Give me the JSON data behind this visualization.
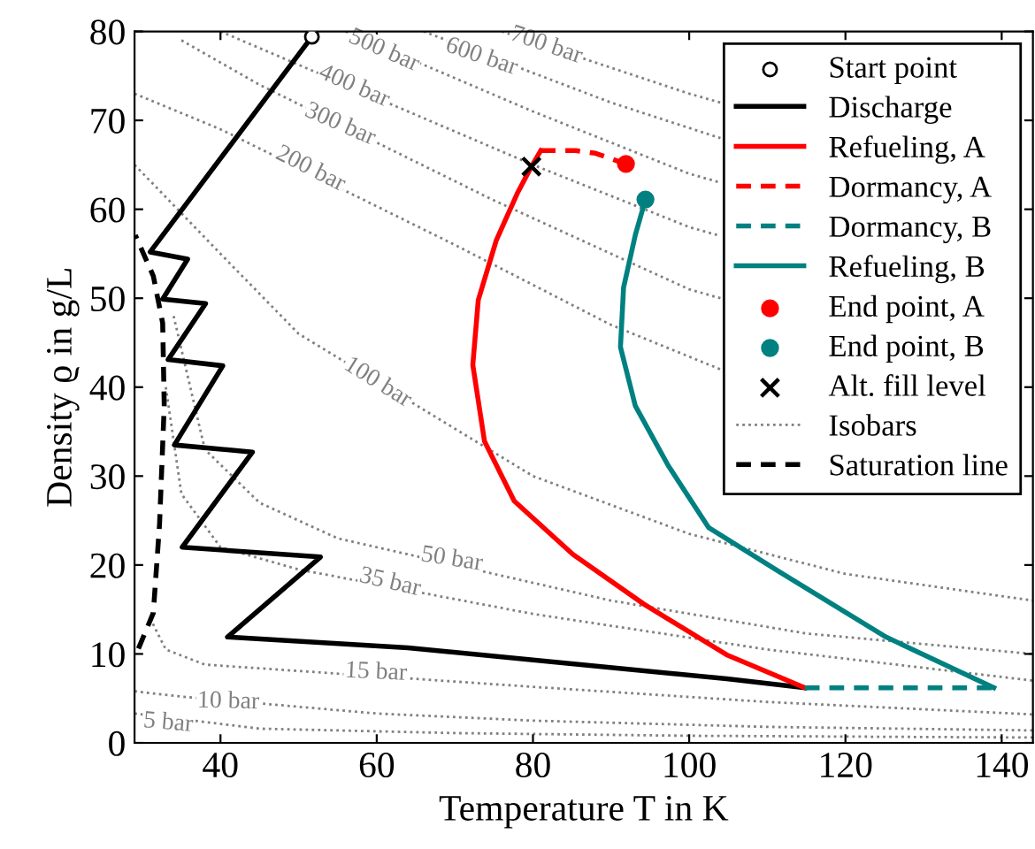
{
  "chart_data": {
    "type": "line",
    "xlabel": "Temperature T in K",
    "ylabel": "Density ϱ in g/L",
    "xlim": [
      29,
      144
    ],
    "ylim": [
      0,
      80
    ],
    "xticks": [
      40,
      60,
      80,
      100,
      120,
      140
    ],
    "yticks": [
      0,
      10,
      20,
      30,
      40,
      50,
      60,
      70,
      80
    ],
    "grid": false,
    "legend": "top right",
    "series": [
      {
        "name": "Start point",
        "type": "scatter",
        "marker": "circle",
        "color": "#ffffff",
        "x": [
          51.7
        ],
        "values": [
          79.4
        ]
      },
      {
        "name": "Discharge",
        "color": "#000000",
        "line_style": "solid",
        "x": [
          51.7,
          31.0,
          35.8,
          32.6,
          38.1,
          33.3,
          40.3,
          34.1,
          44.1,
          35.1,
          52.8,
          40.9,
          64,
          104.8,
          114.8
        ],
        "values": [
          79.4,
          55.2,
          54.4,
          49.9,
          49.4,
          43.1,
          42.4,
          33.5,
          32.7,
          22.0,
          20.9,
          11.9,
          10.7,
          7.2,
          6.2
        ]
      },
      {
        "name": "Refueling, A",
        "type": "line",
        "color": "#ff0000",
        "line_style": "solid",
        "x": [
          114.8,
          104.8,
          94.2,
          85.1,
          77.6,
          73.8,
          72.3,
          73.0,
          75.3,
          78.0,
          79.8,
          81.0
        ],
        "values": [
          6.2,
          9.9,
          15.6,
          21.2,
          27.2,
          33.9,
          42.5,
          49.8,
          56.5,
          61.8,
          64.8,
          66.6
        ]
      },
      {
        "name": "Dormancy, A",
        "type": "line",
        "color": "#ff0000",
        "line_style": "dashed",
        "x": [
          81.0,
          85.5,
          88.0,
          91.9
        ],
        "values": [
          66.6,
          66.6,
          66.3,
          65.1
        ]
      },
      {
        "name": "Dormancy, B",
        "type": "line",
        "color": "#008080",
        "line_style": "dashed",
        "x": [
          114.8,
          139
        ],
        "values": [
          6.2,
          6.2
        ]
      },
      {
        "name": "Refueling, B",
        "type": "line",
        "color": "#008080",
        "line_style": "solid",
        "x": [
          139,
          125.2,
          111.6,
          102.5,
          97.3,
          93.1,
          91.2,
          91.6,
          93.1,
          94.4
        ],
        "values": [
          6.2,
          11.9,
          19.2,
          24.2,
          31.2,
          37.9,
          44.5,
          51.2,
          57.1,
          61.1
        ]
      },
      {
        "name": "End point, A",
        "type": "scatter",
        "marker": "circle",
        "color": "#ff0000",
        "x": [
          91.9
        ],
        "values": [
          65.1
        ]
      },
      {
        "name": "End point, B",
        "type": "scatter",
        "marker": "circle",
        "color": "#008080",
        "x": [
          94.4
        ],
        "values": [
          61.1
        ]
      },
      {
        "name": "Alt. fill level",
        "type": "scatter",
        "marker": "cross",
        "color": "#000000",
        "x": [
          79.8
        ],
        "values": [
          64.8
        ]
      },
      {
        "name": "Isobars",
        "type": "line",
        "color": "#808080",
        "line_style": "dotted",
        "x": [
          29,
          45,
          70,
          100,
          144,
          null,
          29,
          35,
          60,
          80,
          110,
          144,
          null,
          31,
          33,
          38,
          80,
          110,
          144,
          null,
          33,
          35,
          40,
          50,
          80,
          110,
          144,
          null,
          34,
          38,
          45,
          55,
          90,
          115,
          144,
          null,
          29,
          40,
          50,
          80,
          100,
          120,
          144,
          null,
          29,
          40,
          70,
          90,
          104,
          null,
          35,
          45,
          75,
          100,
          104,
          null,
          40,
          80,
          100,
          104,
          null,
          56,
          80,
          100,
          104,
          null,
          66,
          90,
          104,
          null,
          76,
          100,
          104
        ],
        "values": [
          3.3,
          1.6,
          1.1,
          0.8,
          0.6,
          null,
          5.8,
          5.2,
          3.3,
          2.5,
          1.8,
          1.4,
          null,
          14,
          10.5,
          8.8,
          6.3,
          4.6,
          3.2,
          null,
          40,
          28,
          22,
          19.5,
          14.5,
          10.5,
          7.0,
          null,
          48,
          33,
          27,
          23,
          16,
          12.3,
          10.0,
          null,
          65,
          55,
          46,
          30,
          23.5,
          19,
          16,
          null,
          73,
          69,
          56,
          47,
          42,
          null,
          79,
          74,
          61,
          51,
          50,
          null,
          80,
          65,
          58,
          57,
          null,
          80,
          71,
          64,
          63,
          null,
          80,
          72,
          68,
          null,
          80,
          73,
          72
        ]
      },
      {
        "name": "Saturation line",
        "type": "line",
        "color": "#000000",
        "line_style": "dashed",
        "x": [
          29.5,
          31.4,
          32.2,
          32.8,
          32.6,
          31.4,
          29.1
        ],
        "values": [
          10.6,
          14.6,
          24.6,
          37.9,
          47.2,
          52.5,
          57.1
        ]
      }
    ],
    "annotations": [
      {
        "text": "5 bar",
        "x": 33.3,
        "y": 2.2
      },
      {
        "text": "10 bar",
        "x": 41,
        "y": 4.6
      },
      {
        "text": "15 bar",
        "x": 59.9,
        "y": 7.9
      },
      {
        "text": "35 bar",
        "x": 61.7,
        "y": 18.0
      },
      {
        "text": "50 bar",
        "x": 69.6,
        "y": 20.6
      },
      {
        "text": "100 bar",
        "x": 60.1,
        "y": 40.5
      },
      {
        "text": "200 bar",
        "x": 51.5,
        "y": 64.5
      },
      {
        "text": "300 bar",
        "x": 55.3,
        "y": 69.5
      },
      {
        "text": "400 bar",
        "x": 57.1,
        "y": 73.8
      },
      {
        "text": "500 bar",
        "x": 60.9,
        "y": 77.8
      },
      {
        "text": "600 bar",
        "x": 73.4,
        "y": 77.1
      },
      {
        "text": "700 bar",
        "x": 81.7,
        "y": 78.4
      }
    ]
  }
}
